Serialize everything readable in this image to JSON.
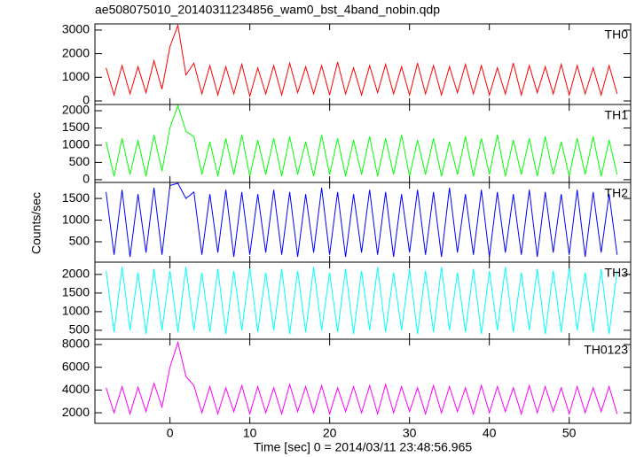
{
  "title": "ae508075010_20140311234856_wam0_bst_4band_nobin.qdp",
  "xlabel": "Time [sec] 0 = 2014/03/11 23:48:56.965",
  "ylabel": "Counts/sec",
  "chart_data": [
    {
      "type": "line",
      "label": "TH0",
      "color": "#ff0000",
      "x": [
        -8,
        -7,
        -6,
        -5,
        -4,
        -3,
        -2,
        -1,
        0,
        1,
        2,
        3,
        4,
        5,
        6,
        7,
        8,
        9,
        10,
        11,
        12,
        13,
        14,
        15,
        16,
        17,
        18,
        19,
        20,
        21,
        22,
        23,
        24,
        25,
        26,
        27,
        28,
        29,
        30,
        31,
        32,
        33,
        34,
        35,
        36,
        37,
        38,
        39,
        40,
        41,
        42,
        43,
        44,
        45,
        46,
        47,
        48,
        49,
        50,
        51,
        52,
        53,
        54,
        55,
        56
      ],
      "values": [
        1400,
        250,
        1500,
        300,
        1450,
        350,
        1700,
        500,
        2300,
        3200,
        1100,
        1600,
        300,
        1500,
        250,
        1450,
        300,
        1550,
        200,
        1400,
        300,
        1500,
        250,
        1600,
        350,
        1450,
        300,
        1500,
        250,
        1650,
        300,
        1400,
        250,
        1500,
        350,
        1550,
        300,
        1450,
        250,
        1600,
        300,
        1500,
        250,
        1450,
        350,
        1550,
        300,
        1500,
        250,
        1400,
        300,
        1600,
        250,
        1500,
        350,
        1450,
        300,
        1550,
        250,
        1500,
        300,
        1400,
        250,
        1500,
        300
      ],
      "xlim": [
        -9.4,
        57.7
      ],
      "xticks": [
        0,
        10,
        20,
        30,
        40,
        50
      ],
      "ylim": [
        -150,
        3260
      ],
      "yticks": [
        0,
        1000,
        2000,
        3000
      ]
    },
    {
      "type": "line",
      "label": "TH1",
      "color": "#00ff00",
      "x": [
        -8,
        -7,
        -6,
        -5,
        -4,
        -3,
        -2,
        -1,
        0,
        1,
        2,
        3,
        4,
        5,
        6,
        7,
        8,
        9,
        10,
        11,
        12,
        13,
        14,
        15,
        16,
        17,
        18,
        19,
        20,
        21,
        22,
        23,
        24,
        25,
        26,
        27,
        28,
        29,
        30,
        31,
        32,
        33,
        34,
        35,
        36,
        37,
        38,
        39,
        40,
        41,
        42,
        43,
        44,
        45,
        46,
        47,
        48,
        49,
        50,
        51,
        52,
        53,
        54,
        55,
        56
      ],
      "values": [
        1100,
        100,
        1200,
        150,
        1150,
        100,
        1300,
        250,
        1500,
        2150,
        1400,
        1250,
        150,
        1100,
        100,
        1200,
        150,
        1300,
        100,
        1150,
        150,
        1200,
        100,
        1250,
        150,
        1100,
        100,
        1300,
        150,
        1200,
        100,
        1150,
        150,
        1250,
        100,
        1200,
        150,
        1300,
        100,
        1150,
        150,
        1200,
        100,
        1100,
        150,
        1250,
        100,
        1200,
        150,
        1300,
        100,
        1150,
        150,
        1200,
        100,
        1250,
        150,
        1100,
        100,
        1200,
        150,
        1250,
        100,
        1150,
        150
      ],
      "xlim": [
        -9.4,
        57.7
      ],
      "xticks": [
        0,
        10,
        20,
        30,
        40,
        50
      ],
      "ylim": [
        -80,
        2180
      ],
      "yticks": [
        0,
        500,
        1000,
        1500,
        2000
      ]
    },
    {
      "type": "line",
      "label": "TH2",
      "color": "#0000ff",
      "x": [
        -8,
        -7,
        -6,
        -5,
        -4,
        -3,
        -2,
        -1,
        0,
        1,
        2,
        3,
        4,
        5,
        6,
        7,
        8,
        9,
        10,
        11,
        12,
        13,
        14,
        15,
        16,
        17,
        18,
        19,
        20,
        21,
        22,
        23,
        24,
        25,
        26,
        27,
        28,
        29,
        30,
        31,
        32,
        33,
        34,
        35,
        36,
        37,
        38,
        39,
        40,
        41,
        42,
        43,
        44,
        45,
        46,
        47,
        48,
        49,
        50,
        51,
        52,
        53,
        54,
        55,
        56
      ],
      "values": [
        1650,
        200,
        1700,
        150,
        1600,
        250,
        1750,
        200,
        1800,
        1850,
        1500,
        1650,
        200,
        1600,
        250,
        1700,
        150,
        1650,
        200,
        1600,
        250,
        1700,
        200,
        1650,
        150,
        1600,
        250,
        1750,
        200,
        1650,
        150,
        1600,
        250,
        1700,
        200,
        1650,
        150,
        1600,
        250,
        1700,
        200,
        1650,
        150,
        1750,
        250,
        1600,
        200,
        1700,
        150,
        1650,
        250,
        1600,
        200,
        1700,
        150,
        1650,
        250,
        1600,
        200,
        1700,
        150,
        1650,
        250,
        1600,
        200
      ],
      "xlim": [
        -9.4,
        57.7
      ],
      "xticks": [
        0,
        10,
        20,
        30,
        40,
        50
      ],
      "ylim": [
        30,
        1870
      ],
      "yticks": [
        500,
        1000,
        1500
      ]
    },
    {
      "type": "line",
      "label": "TH3",
      "color": "#00ffff",
      "x": [
        -8,
        -7,
        -6,
        -5,
        -4,
        -3,
        -2,
        -1,
        0,
        1,
        2,
        3,
        4,
        5,
        6,
        7,
        8,
        9,
        10,
        11,
        12,
        13,
        14,
        15,
        16,
        17,
        18,
        19,
        20,
        21,
        22,
        23,
        24,
        25,
        26,
        27,
        28,
        29,
        30,
        31,
        32,
        33,
        34,
        35,
        36,
        37,
        38,
        39,
        40,
        41,
        42,
        43,
        44,
        45,
        46,
        47,
        48,
        49,
        50,
        51,
        52,
        53,
        54,
        55,
        56
      ],
      "values": [
        2100,
        450,
        2200,
        500,
        2050,
        400,
        2150,
        500,
        2100,
        450,
        2200,
        500,
        2050,
        450,
        2150,
        400,
        2100,
        500,
        2200,
        450,
        2050,
        500,
        2150,
        400,
        2100,
        450,
        2200,
        500,
        2050,
        450,
        2150,
        400,
        2100,
        500,
        2200,
        450,
        2050,
        500,
        2150,
        400,
        2100,
        450,
        2200,
        500,
        2050,
        450,
        2150,
        400,
        2100,
        500,
        2200,
        450,
        2050,
        500,
        2150,
        400,
        2100,
        450,
        2200,
        500,
        2050,
        450,
        2150,
        400,
        2100
      ],
      "xlim": [
        -9.4,
        57.7
      ],
      "xticks": [
        0,
        10,
        20,
        30,
        40,
        50
      ],
      "ylim": [
        260,
        2330
      ],
      "yticks": [
        500,
        1000,
        1500,
        2000
      ]
    },
    {
      "type": "line",
      "label": "TH0123",
      "color": "#ff00ff",
      "x": [
        -8,
        -7,
        -6,
        -5,
        -4,
        -3,
        -2,
        -1,
        0,
        1,
        2,
        3,
        4,
        5,
        6,
        7,
        8,
        9,
        10,
        11,
        12,
        13,
        14,
        15,
        16,
        17,
        18,
        19,
        20,
        21,
        22,
        23,
        24,
        25,
        26,
        27,
        28,
        29,
        30,
        31,
        32,
        33,
        34,
        35,
        36,
        37,
        38,
        39,
        40,
        41,
        42,
        43,
        44,
        45,
        46,
        47,
        48,
        49,
        50,
        51,
        52,
        53,
        54,
        55,
        56
      ],
      "values": [
        4200,
        2000,
        4300,
        1900,
        4250,
        2100,
        4600,
        2500,
        6000,
        8200,
        5200,
        4400,
        2000,
        4300,
        1900,
        4200,
        2100,
        4400,
        1900,
        4300,
        2000,
        4200,
        1900,
        4500,
        2100,
        4300,
        2000,
        4400,
        1900,
        4200,
        2100,
        4300,
        2000,
        4400,
        1900,
        4500,
        2000,
        4300,
        2100,
        4200,
        1900,
        4400,
        2000,
        4300,
        2100,
        4200,
        1900,
        4400,
        2000,
        4300,
        2100,
        4200,
        1900,
        4400,
        2000,
        4300,
        2100,
        4200,
        1900,
        4300,
        2000,
        4200,
        2100,
        4300,
        1900
      ],
      "xlim": [
        -9.4,
        57.7
      ],
      "xticks": [
        0,
        10,
        20,
        30,
        40,
        50
      ],
      "ylim": [
        1070,
        8470
      ],
      "yticks": [
        2000,
        4000,
        6000,
        8000
      ]
    }
  ]
}
